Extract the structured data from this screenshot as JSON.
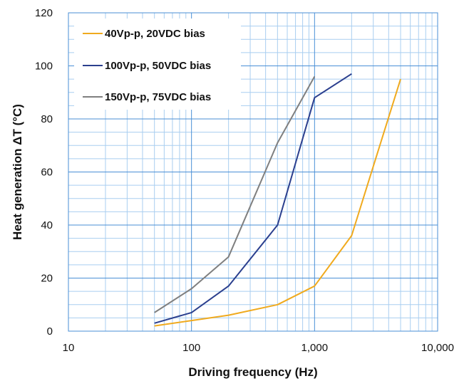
{
  "chart_data": {
    "type": "line",
    "xlabel": "Driving frequency (Hz)",
    "ylabel": "Heat generation ΔT (°C)",
    "x_scale": "log",
    "xlim": [
      10,
      10000
    ],
    "ylim": [
      0,
      120
    ],
    "x_ticks": [
      10,
      100,
      1000,
      10000
    ],
    "x_tick_labels": [
      "10",
      "100",
      "1,000",
      "10,000"
    ],
    "y_ticks": [
      0,
      20,
      40,
      60,
      80,
      100,
      120
    ],
    "y_tick_labels": [
      "0",
      "20",
      "40",
      "60",
      "80",
      "100",
      "120"
    ],
    "grid": true,
    "legend_position": "top-left",
    "series": [
      {
        "name": "40Vp-p, 20VDC bias",
        "color": "#F0AA1E",
        "x": [
          50,
          100,
          200,
          500,
          1000,
          2000,
          5000
        ],
        "y": [
          2,
          4,
          6,
          10,
          17,
          36,
          95
        ]
      },
      {
        "name": "100Vp-p, 50VDC bias",
        "color": "#2B3F8E",
        "x": [
          50,
          100,
          200,
          500,
          1000,
          2000
        ],
        "y": [
          3,
          7,
          17,
          40,
          88,
          97
        ]
      },
      {
        "name": "150Vp-p, 75VDC bias",
        "color": "#7F7F7F",
        "x": [
          50,
          100,
          200,
          500,
          1000
        ],
        "y": [
          7,
          16,
          28,
          71,
          96
        ]
      }
    ]
  }
}
